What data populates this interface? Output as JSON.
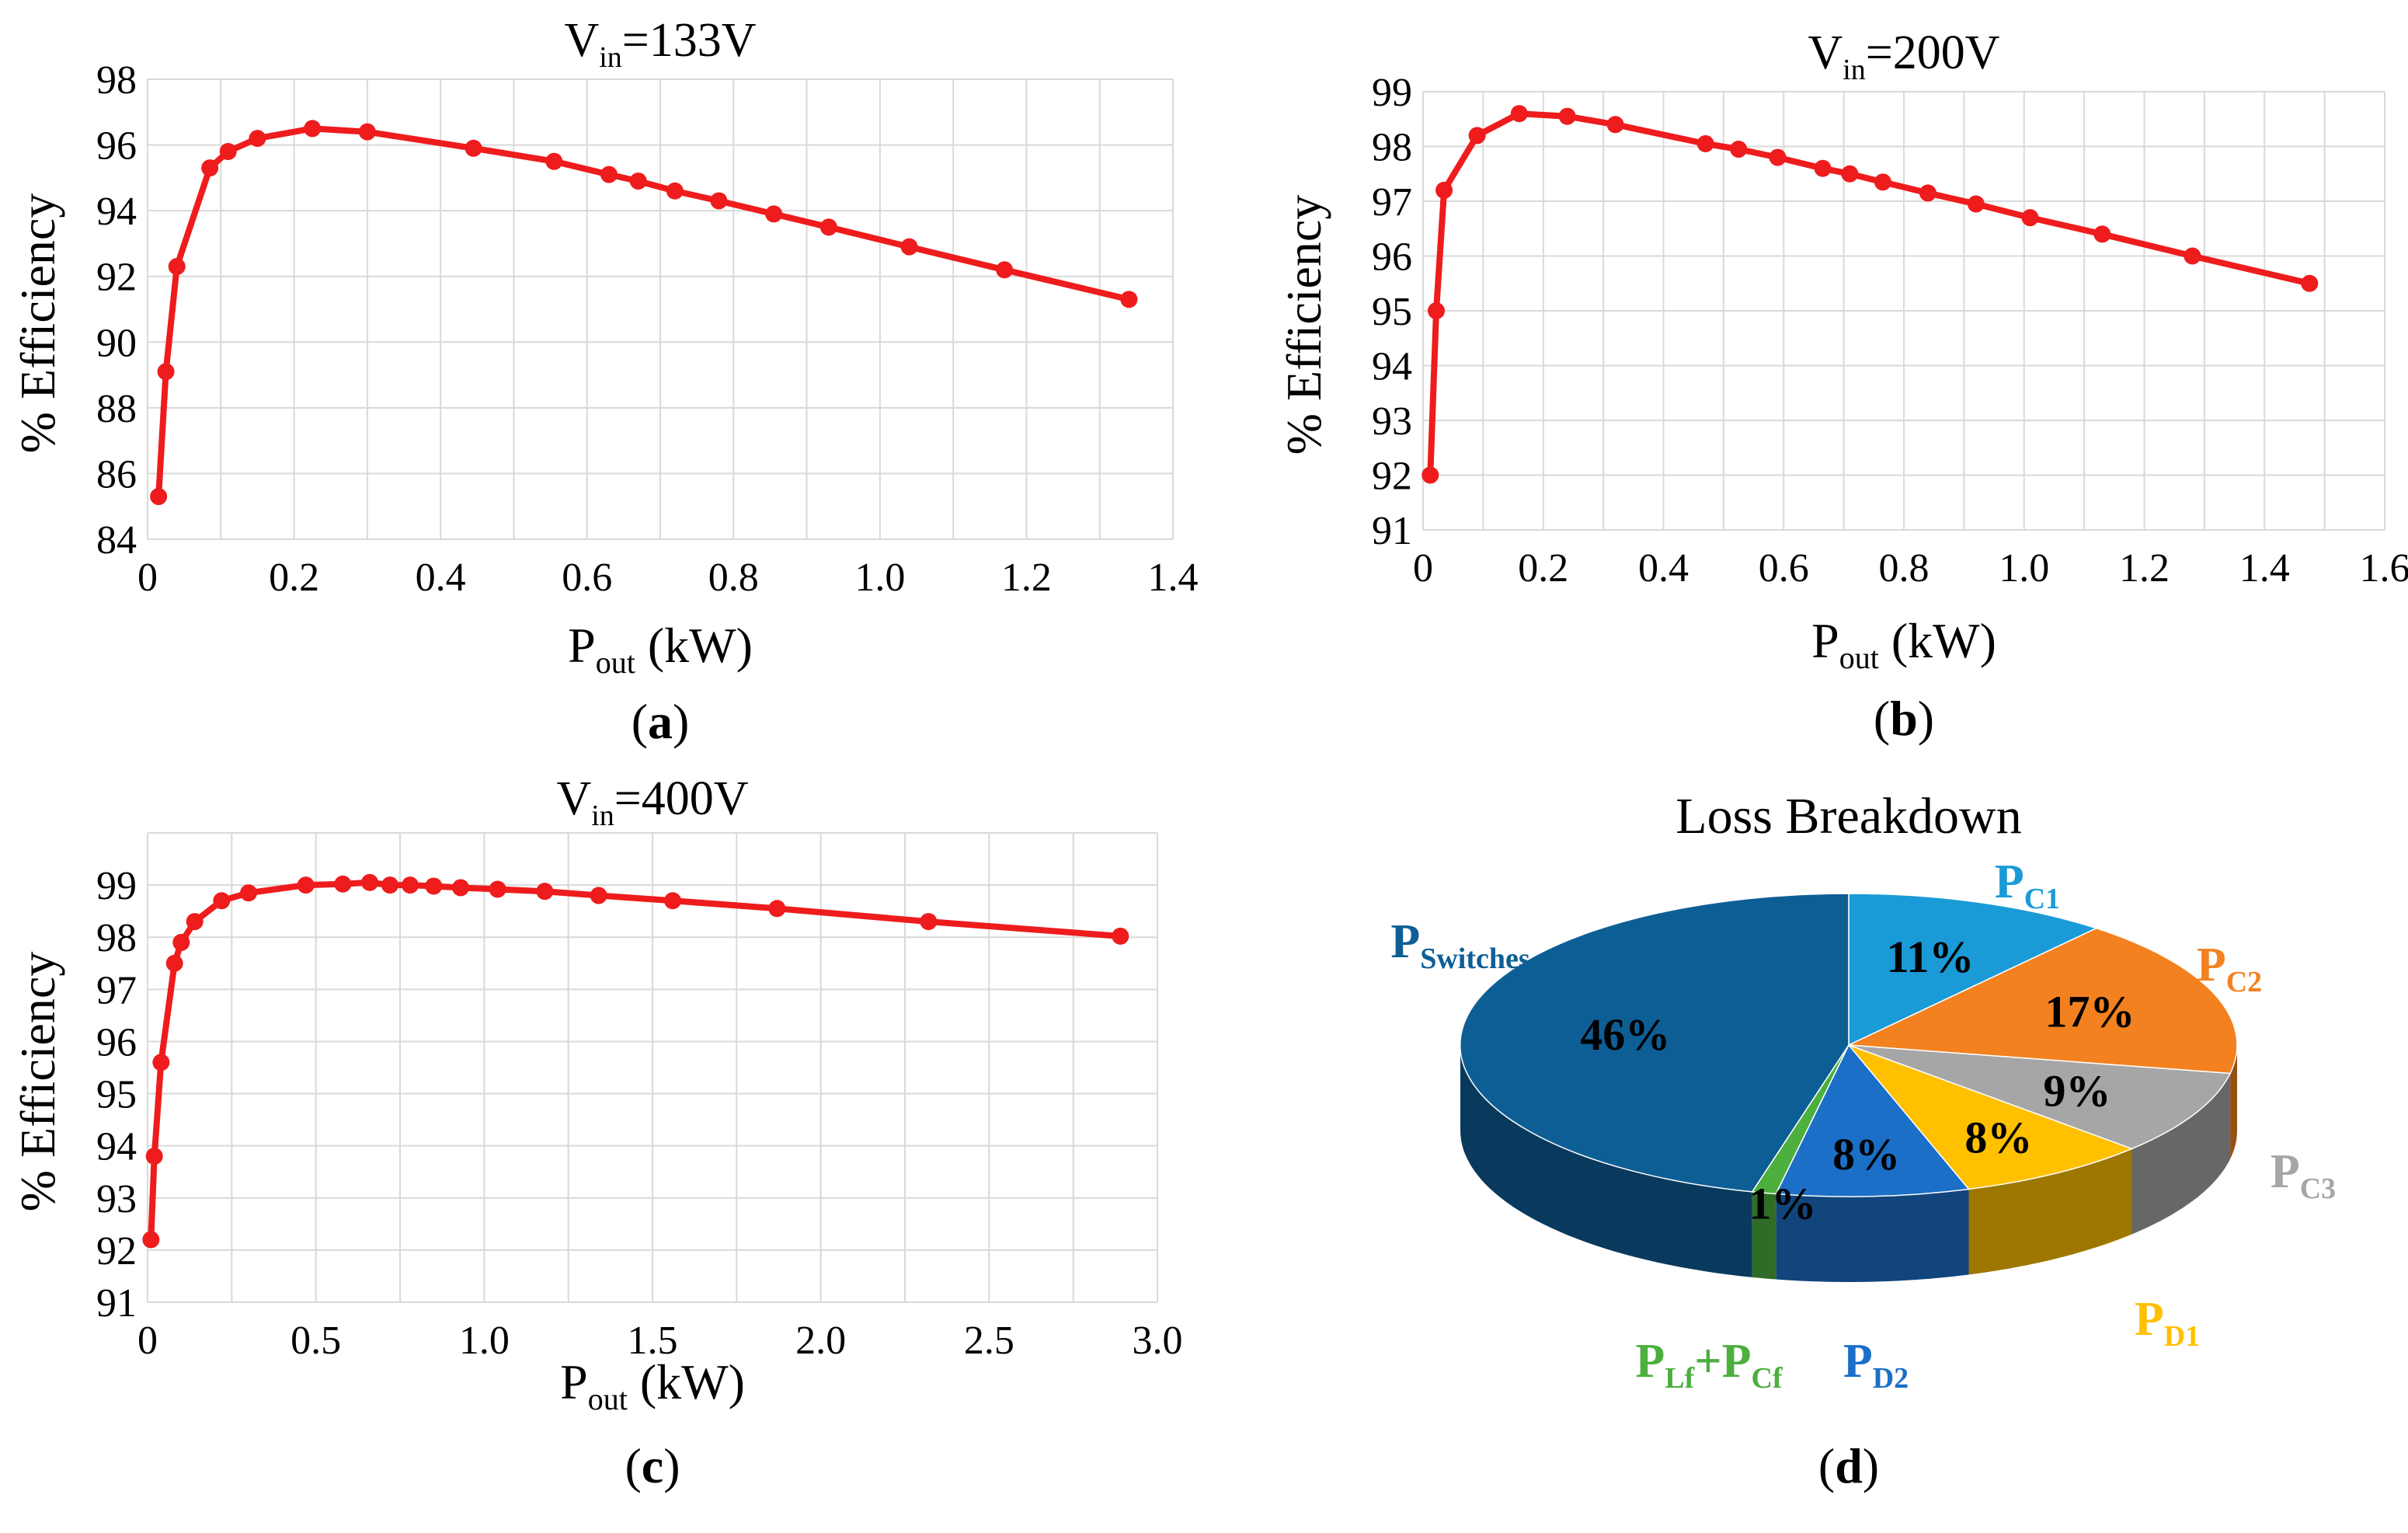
{
  "chart_data": [
    {
      "type": "line",
      "panel_label": "(a)",
      "title": {
        "main": "V",
        "sub": "in",
        "rest": "=133V"
      },
      "xlabel": {
        "main": "P",
        "sub": "out",
        "rest": " (kW)"
      },
      "ylabel": "% Efficiency",
      "xlim": [
        0,
        1.4
      ],
      "ylim": [
        84,
        98
      ],
      "xticks": [
        0,
        0.2,
        0.4,
        0.6,
        0.8,
        1.0,
        1.2,
        1.4
      ],
      "xtick_labels": [
        "0",
        "0.2",
        "0.4",
        "0.6",
        "0.8",
        "1.0",
        "1.2",
        "1.4"
      ],
      "yticks": [
        84,
        86,
        88,
        90,
        92,
        94,
        96,
        98
      ],
      "ytick_labels": [
        "84",
        "86",
        "88",
        "90",
        "92",
        "94",
        "96",
        "98"
      ],
      "grid": true,
      "color": "#ee1c1c",
      "x": [
        0.015,
        0.025,
        0.04,
        0.085,
        0.11,
        0.15,
        0.225,
        0.3,
        0.445,
        0.555,
        0.63,
        0.67,
        0.72,
        0.78,
        0.855,
        0.93,
        1.04,
        1.17,
        1.34
      ],
      "y": [
        85.3,
        89.1,
        92.3,
        95.3,
        95.8,
        96.2,
        96.5,
        96.4,
        95.9,
        95.5,
        95.1,
        94.9,
        94.6,
        94.3,
        93.9,
        93.5,
        92.9,
        92.2,
        91.3
      ]
    },
    {
      "type": "line",
      "panel_label": "(b)",
      "title": {
        "main": "V",
        "sub": "in",
        "rest": "=200V"
      },
      "xlabel": {
        "main": "P",
        "sub": "out",
        "rest": " (kW)"
      },
      "ylabel": "% Efficiency",
      "xlim": [
        0,
        1.6
      ],
      "ylim": [
        91,
        99
      ],
      "xticks": [
        0,
        0.2,
        0.4,
        0.6,
        0.8,
        1.0,
        1.2,
        1.4,
        1.6
      ],
      "xtick_labels": [
        "0",
        "0.2",
        "0.4",
        "0.6",
        "0.8",
        "1.0",
        "1.2",
        "1.4",
        "1.6"
      ],
      "yticks": [
        91,
        92,
        93,
        94,
        95,
        96,
        97,
        98,
        99
      ],
      "ytick_labels": [
        "91",
        "92",
        "93",
        "94",
        "95",
        "96",
        "97",
        "98",
        "99"
      ],
      "grid": true,
      "color": "#ee1c1c",
      "x": [
        0.012,
        0.022,
        0.035,
        0.09,
        0.16,
        0.24,
        0.32,
        0.47,
        0.525,
        0.59,
        0.665,
        0.71,
        0.765,
        0.84,
        0.92,
        1.01,
        1.13,
        1.28,
        1.475
      ],
      "y": [
        92.0,
        95.0,
        97.2,
        98.2,
        98.6,
        98.55,
        98.4,
        98.05,
        97.95,
        97.8,
        97.6,
        97.5,
        97.35,
        97.15,
        96.95,
        96.7,
        96.4,
        96.0,
        95.5
      ]
    },
    {
      "type": "line",
      "panel_label": "(c)",
      "title": {
        "main": "V",
        "sub": "in",
        "rest": "=400V"
      },
      "xlabel": {
        "main": "P",
        "sub": "out",
        "rest": " (kW)"
      },
      "ylabel": "% Efficiency",
      "xlim": [
        0,
        3.0
      ],
      "ylim": [
        91,
        100
      ],
      "xticks": [
        0,
        0.5,
        1.0,
        1.5,
        2.0,
        2.5,
        3.0
      ],
      "xtick_labels": [
        "0",
        "0.5",
        "1.0",
        "1.5",
        "2.0",
        "2.5",
        "3.0"
      ],
      "yticks": [
        91,
        92,
        93,
        94,
        95,
        96,
        97,
        98,
        99
      ],
      "ytick_labels": [
        "91",
        "92",
        "93",
        "94",
        "95",
        "96",
        "97",
        "98",
        "99"
      ],
      "grid": true,
      "color": "#ee1c1c",
      "x": [
        0.01,
        0.02,
        0.04,
        0.08,
        0.1,
        0.14,
        0.22,
        0.3,
        0.47,
        0.58,
        0.66,
        0.72,
        0.78,
        0.85,
        0.93,
        1.04,
        1.18,
        1.34,
        1.56,
        1.87,
        2.32,
        2.89
      ],
      "y": [
        92.2,
        93.8,
        95.6,
        97.5,
        97.9,
        98.3,
        98.7,
        98.85,
        99.0,
        99.02,
        99.05,
        99.0,
        99.0,
        98.98,
        98.95,
        98.92,
        98.88,
        98.8,
        98.7,
        98.55,
        98.3,
        98.02
      ]
    },
    {
      "type": "pie",
      "panel_label": "(d)",
      "title": "Loss Breakdown",
      "slices": [
        {
          "label": {
            "main": "P",
            "sub": "C1"
          },
          "value": 11,
          "pct": "11%",
          "color": "#1a9ad6"
        },
        {
          "label": {
            "main": "P",
            "sub": "C2"
          },
          "value": 17,
          "pct": "17%",
          "color": "#f4811f"
        },
        {
          "label": {
            "main": "P",
            "sub": "C3"
          },
          "value": 9,
          "pct": "9%",
          "color": "#a6a6a6"
        },
        {
          "label": {
            "main": "P",
            "sub": "D1"
          },
          "value": 8,
          "pct": "8%",
          "color": "#ffc000"
        },
        {
          "label": {
            "main": "P",
            "sub": "D2"
          },
          "value": 8,
          "pct": "8%",
          "color": "#1b6fc7"
        },
        {
          "label": {
            "main": "P",
            "sub": "Lf",
            "mid": "+P",
            "sub2": "Cf"
          },
          "value": 1,
          "pct": "1%",
          "color": "#4caf3e"
        },
        {
          "label": {
            "main": "P",
            "sub": "Switches"
          },
          "value": 46,
          "pct": "46%",
          "color": "#0e5e96"
        }
      ]
    }
  ]
}
